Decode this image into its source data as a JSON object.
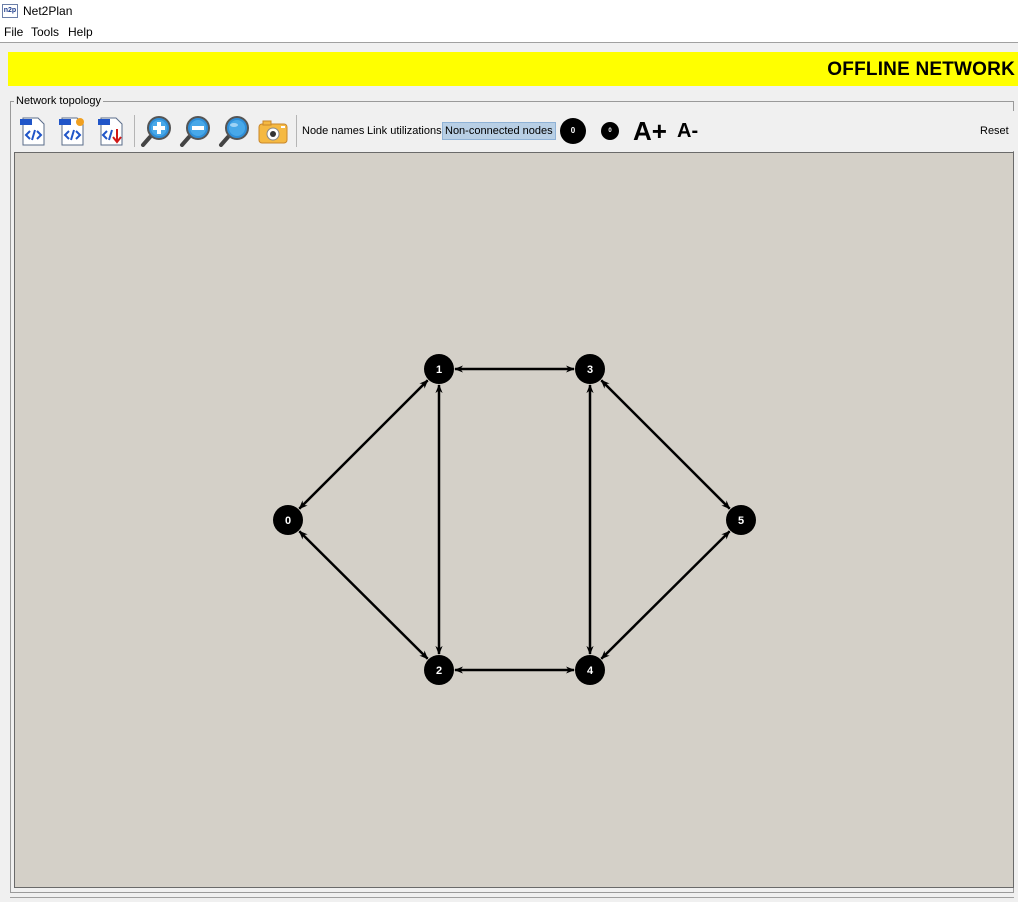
{
  "app": {
    "title": "Net2Plan",
    "logo_text": "n2p"
  },
  "menu": [
    "File",
    "Tools",
    "Help"
  ],
  "banner": {
    "text": "OFFLINE NETWORK",
    "color": "#ffff00"
  },
  "panel": {
    "title": "Network topology"
  },
  "toolbar": {
    "icons": [
      "load-design-icon",
      "load-traffic-icon",
      "save-design-icon",
      "zoom-in-icon",
      "zoom-out-icon",
      "zoom-all-icon",
      "take-snapshot-icon"
    ],
    "node_names": "Node names",
    "link_utilizations": "Link utilizations",
    "non_connected_nodes": "Non-connected nodes",
    "increase_node_size": "0",
    "decrease_node_size": "0",
    "font_increase": "A+",
    "font_decrease": "A-",
    "reset": "Reset"
  },
  "topology": {
    "nodes": [
      {
        "id": "0",
        "label": "0"
      },
      {
        "id": "1",
        "label": "1"
      },
      {
        "id": "2",
        "label": "2"
      },
      {
        "id": "3",
        "label": "3"
      },
      {
        "id": "4",
        "label": "4"
      },
      {
        "id": "5",
        "label": "5"
      }
    ],
    "links": [
      [
        "0",
        "1"
      ],
      [
        "0",
        "2"
      ],
      [
        "1",
        "2"
      ],
      [
        "1",
        "3"
      ],
      [
        "2",
        "4"
      ],
      [
        "3",
        "4"
      ],
      [
        "3",
        "5"
      ],
      [
        "4",
        "5"
      ]
    ],
    "node_color": "#000000",
    "link_color": "#000000",
    "canvas_color": "#d4d0c8"
  }
}
